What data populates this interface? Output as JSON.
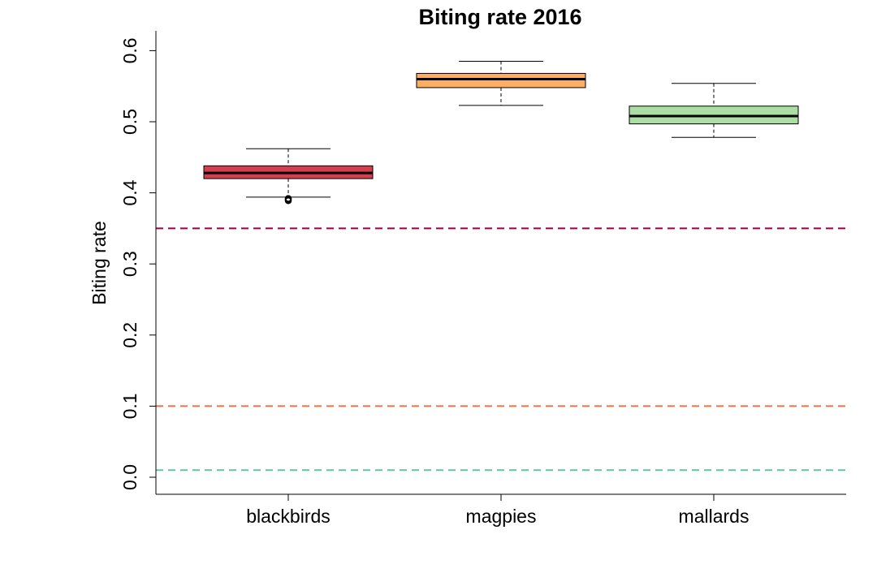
{
  "chart_data": {
    "type": "box",
    "title": "Biting rate 2016",
    "xlabel": "",
    "ylabel": "Biting rate",
    "ylim": [
      -0.025,
      0.625
    ],
    "yticks": [
      0.0,
      0.1,
      0.2,
      0.3,
      0.4,
      0.5,
      0.6
    ],
    "ytick_labels": [
      "0.0",
      "0.1",
      "0.2",
      "0.3",
      "0.4",
      "0.5",
      "0.6"
    ],
    "categories": [
      "blackbirds",
      "magpies",
      "mallards"
    ],
    "boxes": [
      {
        "name": "blackbirds",
        "whisker_low": 0.394,
        "q1": 0.42,
        "median": 0.428,
        "q3": 0.438,
        "whisker_high": 0.462,
        "outliers": [
          0.389,
          0.39,
          0.391,
          0.392
        ],
        "color": "#d53e4f"
      },
      {
        "name": "magpies",
        "whisker_low": 0.523,
        "q1": 0.548,
        "median": 0.56,
        "q3": 0.568,
        "whisker_high": 0.585,
        "outliers": [],
        "color": "#fdae61"
      },
      {
        "name": "mallards",
        "whisker_low": 0.478,
        "q1": 0.497,
        "median": 0.508,
        "q3": 0.522,
        "whisker_high": 0.554,
        "outliers": [],
        "color": "#abdda4"
      }
    ],
    "reference_lines": [
      {
        "y": 0.35,
        "color": "#9e0142"
      },
      {
        "y": 0.1,
        "color": "#f46d43"
      },
      {
        "y": 0.01,
        "color": "#66c2a5"
      }
    ]
  }
}
